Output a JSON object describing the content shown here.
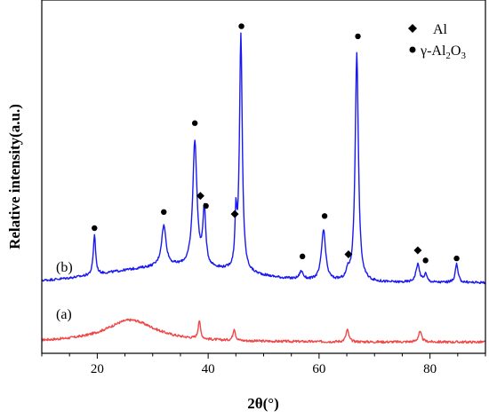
{
  "chart_data": {
    "type": "line",
    "title": "",
    "xlabel": "2θ(°)",
    "ylabel": "Relative intensity(a.u.)",
    "xlim": [
      10,
      90
    ],
    "x_ticks": [
      20,
      40,
      60,
      80
    ],
    "x_tick_labels": [
      "20",
      "40",
      "60",
      "80"
    ],
    "y_ticks_shown": false,
    "grid": false,
    "legend_position": "top-right",
    "legend": [
      {
        "symbol": "diamond",
        "label": "Al"
      },
      {
        "symbol": "circle",
        "label": "γ-Al",
        "sub1": "2",
        "mid": "O",
        "sub2": "3"
      }
    ],
    "series": [
      {
        "name": "(a)",
        "color": "#ef4848",
        "baseline": 0.55,
        "peaks": [
          {
            "center": 26,
            "height": 1.1,
            "width": 5.5
          },
          {
            "center": 38.4,
            "height": 0.9,
            "width": 0.25
          },
          {
            "center": 44.7,
            "height": 0.6,
            "width": 0.25
          },
          {
            "center": 65.1,
            "height": 0.6,
            "width": 0.3
          },
          {
            "center": 78.2,
            "height": 0.5,
            "width": 0.35
          }
        ]
      },
      {
        "name": "(b)",
        "color": "#1a1aee",
        "baseline": 3.5,
        "peaks": [
          {
            "center": 19.5,
            "height": 2.0,
            "width": 0.25
          },
          {
            "center": 32.0,
            "height": 2.0,
            "width": 0.5
          },
          {
            "center": 37.6,
            "height": 6.2,
            "width": 0.45
          },
          {
            "center": 39.3,
            "height": 2.8,
            "width": 0.3
          },
          {
            "center": 45.0,
            "height": 2.5,
            "width": 0.2
          },
          {
            "center": 45.9,
            "height": 11.7,
            "width": 0.3
          },
          {
            "center": 56.8,
            "height": 0.4,
            "width": 0.4
          },
          {
            "center": 60.8,
            "height": 2.5,
            "width": 0.45
          },
          {
            "center": 65.2,
            "height": 0.4,
            "width": 0.3
          },
          {
            "center": 66.8,
            "height": 11.3,
            "width": 0.35
          },
          {
            "center": 77.8,
            "height": 0.9,
            "width": 0.4
          },
          {
            "center": 79.2,
            "height": 0.4,
            "width": 0.3
          },
          {
            "center": 84.8,
            "height": 0.9,
            "width": 0.3
          }
        ],
        "hump": {
          "center": 34,
          "height": 0.8,
          "width": 12
        }
      }
    ],
    "markers": [
      {
        "type": "circle",
        "x": 19.5,
        "y": 6.2
      },
      {
        "type": "circle",
        "x": 32.0,
        "y": 7.0
      },
      {
        "type": "circle",
        "x": 37.6,
        "y": 11.4
      },
      {
        "type": "diamond",
        "x": 38.6,
        "y": 7.8
      },
      {
        "type": "circle",
        "x": 39.6,
        "y": 7.3
      },
      {
        "type": "diamond",
        "x": 44.8,
        "y": 6.9
      },
      {
        "type": "circle",
        "x": 46.0,
        "y": 16.2
      },
      {
        "type": "circle",
        "x": 57.0,
        "y": 4.8
      },
      {
        "type": "circle",
        "x": 61.0,
        "y": 6.8
      },
      {
        "type": "diamond",
        "x": 65.3,
        "y": 4.9
      },
      {
        "type": "circle",
        "x": 67.0,
        "y": 15.7
      },
      {
        "type": "diamond",
        "x": 77.8,
        "y": 5.1
      },
      {
        "type": "circle",
        "x": 79.2,
        "y": 4.6
      },
      {
        "type": "circle",
        "x": 84.8,
        "y": 4.7
      }
    ]
  }
}
